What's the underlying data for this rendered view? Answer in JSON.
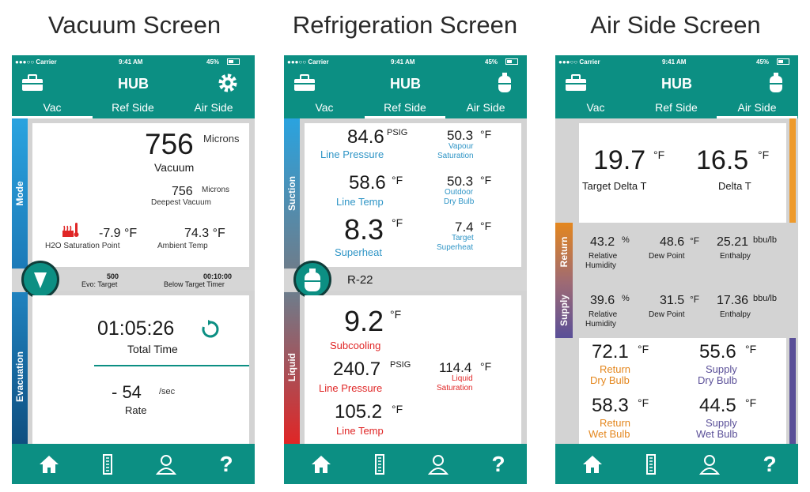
{
  "titles": {
    "vacuum": "Vacuum Screen",
    "refrigeration": "Refrigeration Screen",
    "air": "Air Side Screen"
  },
  "status": {
    "carrier": "●●●○○ Carrier",
    "time": "9:41 AM",
    "battery": "45%"
  },
  "app": {
    "title": "HUB"
  },
  "tabs": {
    "vac": "Vac",
    "ref": "Ref Side",
    "air": "Air Side"
  },
  "vacuum": {
    "vacuum_value": "756",
    "vacuum_unit": "Microns",
    "vacuum_label": "Vacuum",
    "deepest_value": "756",
    "deepest_unit": "Microns",
    "deepest_label": "Deepest Vacuum",
    "h2o_value": "-7.9 °F",
    "h2o_label": "H2O Saturation Point",
    "ambient_value": "74.3 °F",
    "ambient_label": "Ambient Temp",
    "mode_label": "Mode",
    "evo_value": "500",
    "evo_label": "Evo: Target",
    "timer_value": "00:10:00",
    "timer_label": "Below Target Timer",
    "evacuation_label": "Evacuation",
    "total_time_value": "01:05:26",
    "total_time_label": "Total Time",
    "rate_value": "- 54",
    "rate_unit": "/sec",
    "rate_label": "Rate"
  },
  "refrigeration": {
    "suction_label": "Suction",
    "liquid_label": "Liquid",
    "line_pressure_value": "84.6",
    "line_pressure_unit": "PSIG",
    "line_pressure_label": "Line Pressure",
    "vapour_value": "50.3",
    "vapour_unit": "°F",
    "vapour_label_1": "Vapour",
    "vapour_label_2": "Saturation",
    "line_temp_value": "58.6",
    "line_temp_unit": "°F",
    "line_temp_label": "Line Temp",
    "outdoor_value": "50.3",
    "outdoor_unit": "°F",
    "outdoor_label_1": "Outdoor",
    "outdoor_label_2": "Dry Bulb",
    "superheat_value": "8.3",
    "superheat_unit": "°F",
    "superheat_label": "Superheat",
    "target_sh_value": "7.4",
    "target_sh_unit": "°F",
    "target_sh_label_1": "Target",
    "target_sh_label_2": "Superheat",
    "refrigerant": "R-22",
    "subcooling_value": "9.2",
    "subcooling_unit": "°F",
    "subcooling_label": "Subcooling",
    "liq_pressure_value": "240.7",
    "liq_pressure_unit": "PSIG",
    "liq_pressure_label": "Line Pressure",
    "liq_sat_value": "114.4",
    "liq_sat_unit": "°F",
    "liq_sat_label_1": "Liquid",
    "liq_sat_label_2": "Saturation",
    "liq_temp_value": "105.2",
    "liq_temp_unit": "°F",
    "liq_temp_label": "Line Temp"
  },
  "air": {
    "target_delta_value": "19.7",
    "target_delta_unit": "°F",
    "target_delta_label": "Target Delta T",
    "delta_value": "16.5",
    "delta_unit": "°F",
    "delta_label": "Delta T",
    "return_label": "Return",
    "supply_label": "Supply",
    "ret_rh_value": "43.2",
    "ret_rh_unit": "%",
    "ret_rh_label_1": "Relative",
    "ret_rh_label_2": "Humidity",
    "ret_dew_value": "48.6",
    "ret_dew_unit": "°F",
    "ret_dew_label": "Dew Point",
    "ret_enth_value": "25.21",
    "ret_enth_unit": "bbu/lb",
    "ret_enth_label": "Enthalpy",
    "sup_rh_value": "39.6",
    "sup_rh_unit": "%",
    "sup_rh_label_1": "Relative",
    "sup_rh_label_2": "Humidity",
    "sup_dew_value": "31.5",
    "sup_dew_unit": "°F",
    "sup_dew_label": "Dew Point",
    "sup_enth_value": "17.36",
    "sup_enth_unit": "bbu/lb",
    "sup_enth_label": "Enthalpy",
    "ret_dry_value": "72.1",
    "ret_dry_unit": "°F",
    "ret_dry_label_1": "Return",
    "ret_dry_label_2": "Dry Bulb",
    "sup_dry_value": "55.6",
    "sup_dry_unit": "°F",
    "sup_dry_label_1": "Supply",
    "sup_dry_label_2": "Dry Bulb",
    "ret_wet_value": "58.3",
    "ret_wet_unit": "°F",
    "ret_wet_label_1": "Return",
    "ret_wet_label_2": "Wet Bulb",
    "sup_wet_value": "44.5",
    "sup_wet_unit": "°F",
    "sup_wet_label_1": "Supply",
    "sup_wet_label_2": "Wet Bulb"
  },
  "icons": {
    "toolbox": "toolbox-icon",
    "gear": "gear-icon",
    "tank": "refrigerant-tank-icon",
    "home": "home-icon",
    "probe": "probe-icon",
    "user": "user-icon",
    "help": "help-icon",
    "help_glyph": "?"
  },
  "colors": {
    "teal": "#0c8f83",
    "blue": "#2f95c6",
    "red": "#e02626",
    "orange": "#e4871e",
    "purple": "#5a4f98"
  }
}
